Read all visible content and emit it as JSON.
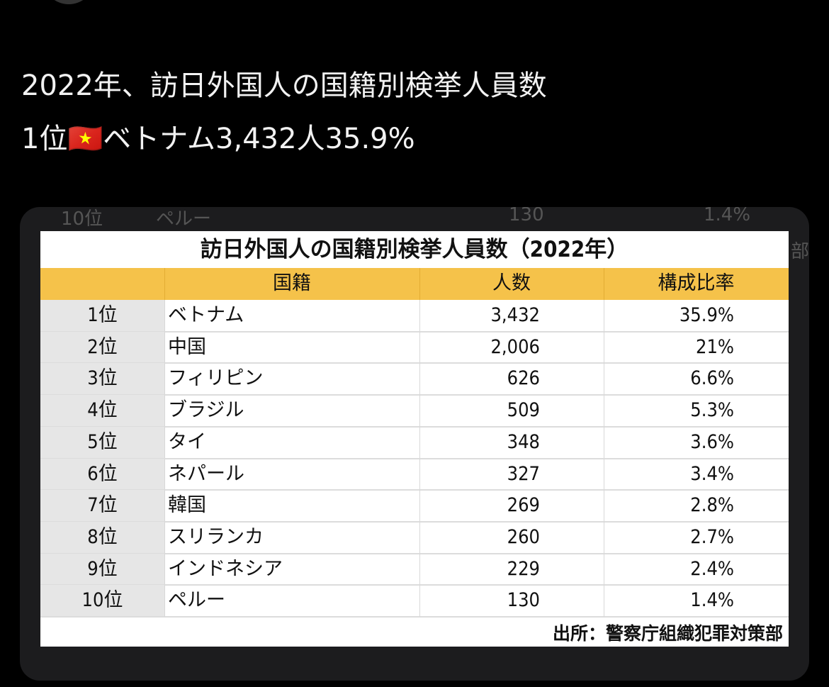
{
  "post": {
    "line1": "2022年、訪日外国人の国籍別検挙人員数",
    "line2": "1位🇻🇳ベトナム3,432人35.9%"
  },
  "ghost": {
    "row": [
      "10位",
      "ペルー",
      "130",
      "1.4%"
    ],
    "edge": "部"
  },
  "table": {
    "title": "訪日外国人の国籍別検挙人員数（2022年）",
    "headers": [
      "国籍",
      "人数",
      "構成比率"
    ],
    "rows": [
      [
        "1位",
        "ベトナム",
        "3,432",
        "35.9%"
      ],
      [
        "2位",
        "中国",
        "2,006",
        "21%"
      ],
      [
        "3位",
        "フィリピン",
        "626",
        "6.6%"
      ],
      [
        "4位",
        "ブラジル",
        "509",
        "5.3%"
      ],
      [
        "5位",
        "タイ",
        "348",
        "3.6%"
      ],
      [
        "6位",
        "ネパール",
        "327",
        "3.4%"
      ],
      [
        "7位",
        "韓国",
        "269",
        "2.8%"
      ],
      [
        "8位",
        "スリランカ",
        "260",
        "2.7%"
      ],
      [
        "9位",
        "インドネシア",
        "229",
        "2.4%"
      ],
      [
        "10位",
        "ペルー",
        "130",
        "1.4%"
      ]
    ],
    "source": "出所：警察庁組織犯罪対策部"
  }
}
